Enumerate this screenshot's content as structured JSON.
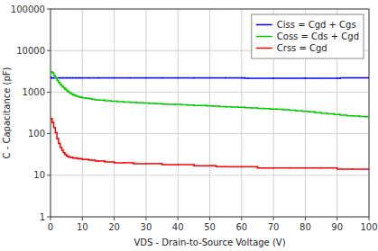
{
  "chart_data": {
    "type": "line",
    "line_style": "steps",
    "log": "y",
    "grid": true,
    "legend": "upper right",
    "xlabel": "VDS - Drain-to-Source Voltage (V)",
    "ylabel": "C - Capacitance (pF)",
    "xlim": [
      0,
      100
    ],
    "ylim": [
      1,
      100000
    ],
    "xticks": [
      0,
      10,
      20,
      30,
      40,
      50,
      60,
      70,
      80,
      90,
      100
    ],
    "yticks": [
      1,
      10,
      100,
      1000,
      10000,
      100000
    ],
    "series": [
      {
        "name": "Ciss = Cgd + Cgs",
        "color": "#0000ff",
        "x": [
          0.0,
          0.1,
          0.2,
          0.3,
          0.5,
          1.0,
          2.0,
          3.0,
          4.0,
          5.0,
          6.0,
          7.0,
          8.0,
          9.0,
          10.0,
          12.0,
          15.0,
          20.0,
          25.0,
          30.0,
          35.0,
          40.0,
          45.0,
          50.0,
          55.0,
          60.0,
          61.0,
          62.0,
          70.0,
          80.0,
          90.0,
          91.0,
          100.0
        ],
        "values": [
          2200,
          2200,
          2200,
          2200,
          2200,
          2200,
          2200,
          2200,
          2200,
          2200,
          2200,
          2200,
          2200,
          2200,
          2200,
          2200,
          2200,
          2200,
          2200,
          2200,
          2200,
          2200,
          2200,
          2200,
          2200,
          2200,
          2150,
          2150,
          2150,
          2150,
          2150,
          2200,
          2200
        ]
      },
      {
        "name": "Coss = Cds + Cgd",
        "color": "#00cc00",
        "x": [
          0.0,
          0.5,
          1.0,
          1.5,
          2.0,
          2.5,
          3.0,
          3.5,
          4.0,
          4.5,
          5.0,
          5.5,
          6.0,
          6.5,
          7.0,
          7.5,
          8.0,
          8.5,
          9.0,
          9.5,
          10.0,
          11.0,
          12.0,
          13.0,
          14.0,
          15.0,
          17.0,
          19.0,
          21.0,
          23.0,
          25.0,
          27.0,
          29.0,
          31.0,
          33.0,
          35.0,
          37.0,
          39.0,
          41.0,
          43.0,
          45.0,
          47.0,
          49.0,
          51.0,
          53.0,
          55.0,
          57.0,
          59.0,
          61.0,
          63.0,
          65.0,
          67.0,
          69.0,
          71.0,
          73.0,
          75.0,
          77.0,
          79.0,
          81.0,
          83.0,
          85.0,
          87.0,
          89.0,
          91.0,
          93.0,
          95.0,
          97.0,
          99.0,
          100.0
        ],
        "values": [
          3100,
          2900,
          2500,
          2200,
          1900,
          1700,
          1500,
          1380,
          1270,
          1170,
          1080,
          1010,
          950,
          900,
          860,
          830,
          800,
          780,
          760,
          745,
          730,
          710,
          690,
          670,
          655,
          640,
          620,
          605,
          590,
          575,
          565,
          555,
          545,
          535,
          525,
          515,
          510,
          505,
          495,
          490,
          480,
          475,
          465,
          460,
          450,
          445,
          435,
          430,
          420,
          415,
          405,
          400,
          390,
          385,
          375,
          365,
          355,
          345,
          335,
          320,
          310,
          300,
          290,
          280,
          270,
          265,
          260,
          255,
          255
        ]
      },
      {
        "name": "Crss = Cgd",
        "color": "#ff0000",
        "x": [
          0.0,
          0.5,
          1.0,
          1.5,
          2.0,
          2.5,
          3.0,
          3.5,
          4.0,
          4.5,
          5.0,
          5.5,
          6.0,
          6.5,
          7.0,
          7.5,
          8.0,
          8.5,
          9.0,
          9.5,
          10.0,
          11.0,
          12.0,
          13.0,
          14.0,
          15.0,
          17.0,
          20.0,
          23.0,
          26.0,
          30.0,
          35.0,
          40.0,
          45.0,
          50.0,
          51.0,
          52.0,
          55.0,
          60.0,
          65.0,
          70.0,
          75.0,
          80.0,
          85.0,
          90.0,
          95.0,
          100.0
        ],
        "values": [
          230,
          185,
          140,
          105,
          75,
          58,
          47,
          40,
          35,
          31,
          29,
          28,
          27,
          27,
          26,
          26,
          26,
          25,
          25,
          25,
          24,
          24,
          23,
          23,
          22,
          22,
          21,
          20,
          20,
          19,
          19,
          18,
          18,
          17,
          17,
          17,
          16,
          16,
          16,
          15,
          15,
          15,
          15,
          15,
          14,
          14,
          14
        ]
      }
    ]
  }
}
